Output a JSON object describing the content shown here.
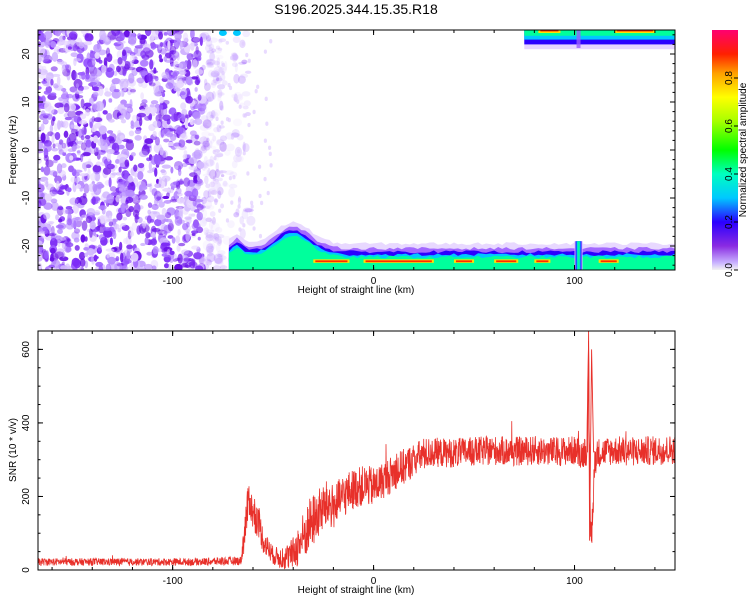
{
  "chart_data": [
    {
      "type": "heatmap",
      "title": "S196.2025.344.15.35.R18",
      "xlabel": "Height of straight line (km)",
      "ylabel": "Frequency (Hz)",
      "xlim": [
        -167,
        150
      ],
      "ylim": [
        -25,
        25
      ],
      "x_ticks": [
        "-100",
        "0",
        "100"
      ],
      "y_ticks": [
        "-20",
        "-10",
        "0",
        "10",
        "20"
      ],
      "colorbar": {
        "label": "Normalized spectral amplitude",
        "range": [
          0.0,
          1.0
        ],
        "ticks": [
          "0.0",
          "0.2",
          "0.4",
          "0.6",
          "0.8"
        ]
      },
      "features": [
        {
          "description": "scattered noise speckles across all frequencies",
          "x_range": [
            -167,
            -75
          ],
          "y_range": [
            -25,
            25
          ]
        },
        {
          "description": "strong low-frequency band",
          "x_range": [
            -72,
            150
          ],
          "y_range": [
            -25,
            -20
          ]
        },
        {
          "description": "strong high-frequency band",
          "x_range": [
            75,
            150
          ],
          "y_range": [
            23,
            25
          ]
        },
        {
          "description": "spike",
          "x": 102,
          "y_range": [
            -25,
            -19
          ]
        }
      ]
    },
    {
      "type": "line",
      "xlabel": "Height of straight line (km)",
      "ylabel": "SNR (10 * v/v)",
      "xlim": [
        -167,
        150
      ],
      "ylim": [
        0,
        650
      ],
      "x_ticks": [
        "-100",
        "0",
        "100"
      ],
      "y_ticks": [
        "0",
        "200",
        "400",
        "600"
      ],
      "color": "#e8302a",
      "envelope": {
        "x": [
          -167,
          -130,
          -90,
          -66,
          -64,
          -62,
          -60,
          -57,
          -55,
          -50,
          -45,
          -40,
          -36,
          -32,
          -28,
          -24,
          -22,
          -20,
          -16,
          -12,
          -8,
          -4,
          0,
          5,
          10,
          15,
          20,
          25,
          30,
          40,
          50,
          60,
          70,
          80,
          90,
          100,
          104,
          106,
          107,
          108,
          109,
          110,
          112,
          120,
          130,
          140,
          150
        ],
        "y": [
          22,
          22,
          22,
          25,
          110,
          200,
          150,
          130,
          80,
          40,
          30,
          45,
          80,
          120,
          150,
          175,
          180,
          170,
          195,
          215,
          225,
          230,
          225,
          245,
          265,
          280,
          300,
          315,
          320,
          318,
          322,
          325,
          322,
          325,
          322,
          325,
          315,
          330,
          520,
          100,
          120,
          300,
          320,
          325,
          322,
          325,
          328
        ],
        "noise_amplitude": [
          10,
          10,
          10,
          12,
          55,
          50,
          45,
          45,
          35,
          25,
          30,
          45,
          65,
          75,
          70,
          65,
          70,
          60,
          60,
          55,
          55,
          55,
          55,
          50,
          50,
          50,
          45,
          45,
          40,
          40,
          40,
          40,
          40,
          40,
          40,
          40,
          40,
          45,
          110,
          40,
          50,
          45,
          40,
          40,
          40,
          40,
          40
        ]
      }
    }
  ]
}
